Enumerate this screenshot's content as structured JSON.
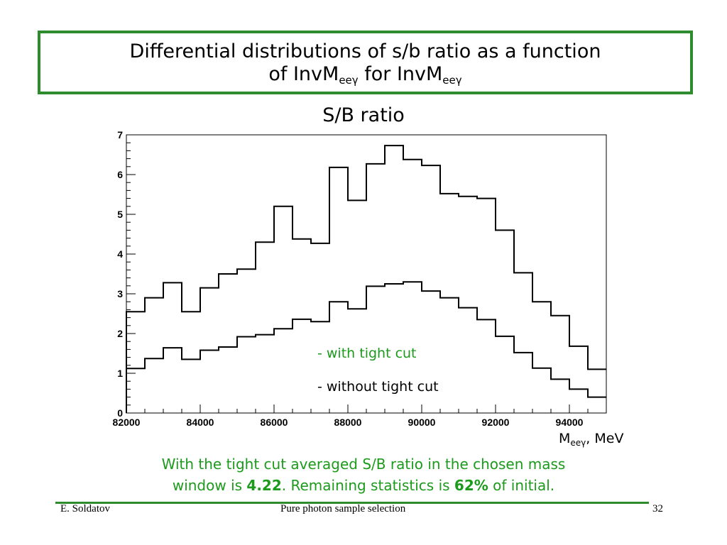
{
  "slide": {
    "title_line1": "Differential distributions of s/b ratio as a function",
    "title_line2_prefix": "of InvM",
    "title_sub": "eeγ",
    "title_line2_mid": " for InvM",
    "title_sub2": "eeγ",
    "plot_title": "S/B ratio",
    "xunit_main": "M",
    "xunit_sub": "eeγ",
    "xunit_tail": ", MeV",
    "legend_tight": "- with tight cut",
    "legend_notight": "- without tight cut",
    "summary_line1": "With the tight cut averaged S/B ratio in the chosen mass",
    "summary_line2_a": "window is ",
    "summary_value1": "4.22",
    "summary_line2_b": ".  Remaining statistics is ",
    "summary_value2": "62%",
    "summary_line2_c": " of initial.",
    "footer_author": "E. Soldatov",
    "footer_title": "Pure photon sample selection",
    "footer_page": "32",
    "accent_color": "#2e8b2e",
    "text_green": "#1c9a1c"
  },
  "chart_data": {
    "type": "histogram",
    "title": "S/B ratio",
    "xlabel": "Meeγ, MeV",
    "ylabel": "",
    "xlim": [
      82000,
      95000
    ],
    "ylim": [
      0,
      7
    ],
    "bin_edges": [
      82000,
      82500,
      83000,
      83500,
      84000,
      84500,
      85000,
      85500,
      86000,
      86500,
      87000,
      87500,
      88000,
      88500,
      89000,
      89500,
      90000,
      90500,
      91000,
      91500,
      92000,
      92500,
      93000,
      93500,
      94000,
      94500,
      95000
    ],
    "x_ticks": [
      82000,
      84000,
      86000,
      88000,
      90000,
      92000,
      94000
    ],
    "y_ticks": [
      0,
      1,
      2,
      3,
      4,
      5,
      6,
      7
    ],
    "grid": false,
    "series": [
      {
        "name": "with tight cut",
        "values": [
          2.55,
          2.9,
          3.28,
          2.55,
          3.15,
          3.5,
          3.62,
          4.3,
          5.2,
          4.38,
          4.27,
          6.18,
          5.35,
          6.27,
          6.73,
          6.38,
          6.23,
          5.52,
          5.45,
          5.4,
          4.6,
          3.53,
          2.8,
          2.45,
          1.68,
          1.1
        ]
      },
      {
        "name": "without tight cut",
        "values": [
          1.12,
          1.37,
          1.64,
          1.35,
          1.58,
          1.66,
          1.92,
          1.97,
          2.12,
          2.36,
          2.3,
          2.8,
          2.62,
          3.19,
          3.25,
          3.3,
          3.07,
          2.9,
          2.65,
          2.35,
          1.93,
          1.52,
          1.13,
          0.85,
          0.6,
          0.4
        ]
      }
    ]
  }
}
